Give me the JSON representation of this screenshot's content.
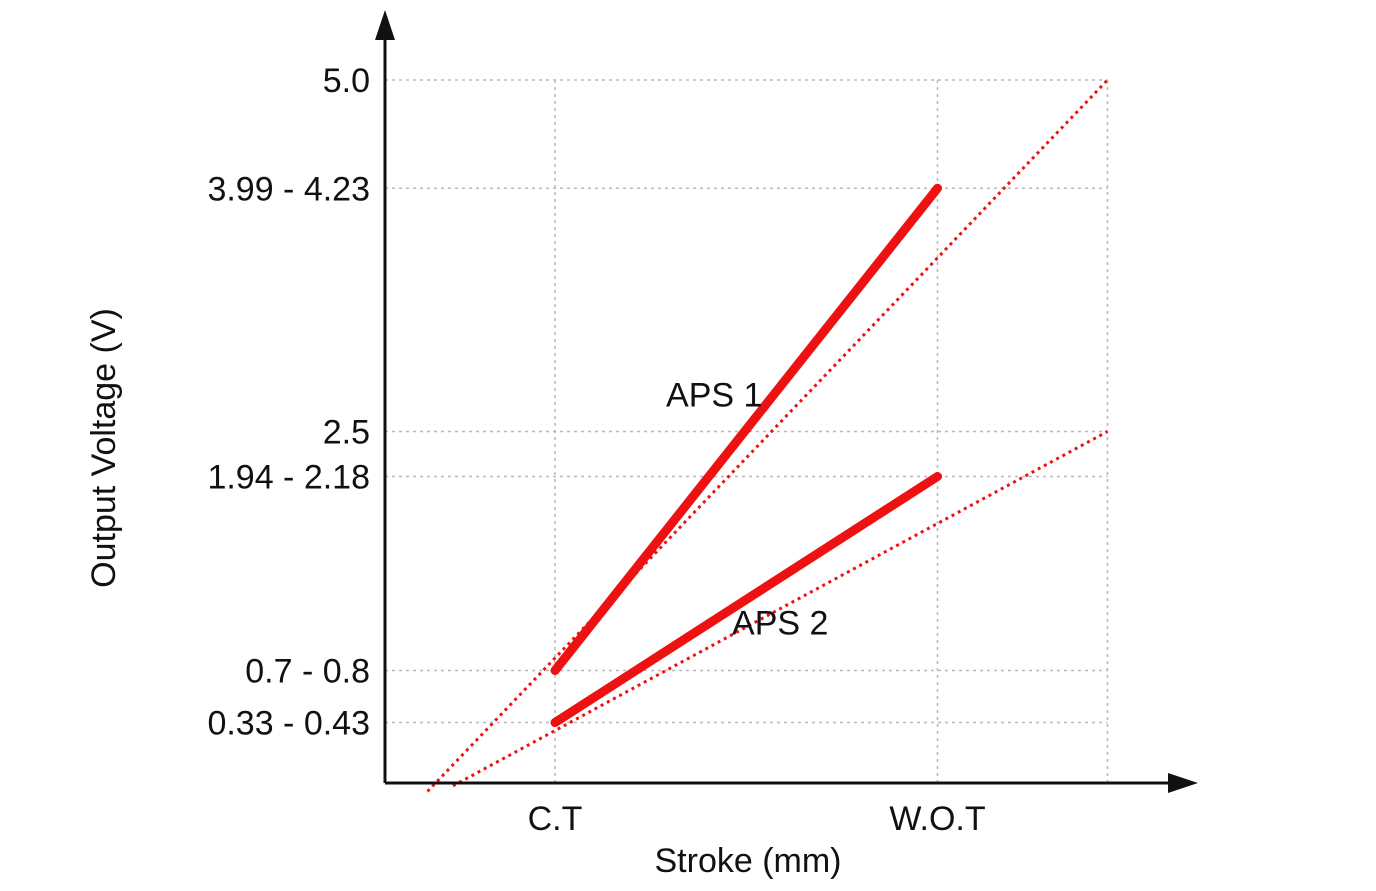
{
  "chart_data": {
    "type": "line",
    "title": "",
    "xlabel": "Stroke (mm)",
    "ylabel": "Output Voltage (V)",
    "x_tick_labels": [
      {
        "label": "C.T",
        "x": 1
      },
      {
        "label": "W.O.T",
        "x": 3.25
      }
    ],
    "x_extra_grid": [
      4.25
    ],
    "xlim": [
      0,
      4.75
    ],
    "y_tick_labels": [
      {
        "label": "5.0",
        "y": 5.0
      },
      {
        "label": "3.99 - 4.23",
        "y": 4.23
      },
      {
        "label": "2.5",
        "y": 2.5
      },
      {
        "label": "1.94 - 2.18",
        "y": 2.18
      },
      {
        "label": "0.7 - 0.8",
        "y": 0.8
      },
      {
        "label": "0.33 - 0.43",
        "y": 0.43
      }
    ],
    "ylim": [
      0,
      5.5
    ],
    "color": "#ee1111",
    "series": [
      {
        "name": "APS 1",
        "solid": [
          [
            1,
            0.8
          ],
          [
            3.25,
            4.23
          ]
        ],
        "extension": [
          [
            0.25,
            -0.06
          ],
          [
            4.25,
            5.0
          ]
        ]
      },
      {
        "name": "APS 2",
        "solid": [
          [
            1,
            0.43
          ],
          [
            3.25,
            2.18
          ]
        ],
        "extension": [
          [
            0.4,
            -0.02
          ],
          [
            4.25,
            2.5
          ]
        ]
      }
    ]
  }
}
